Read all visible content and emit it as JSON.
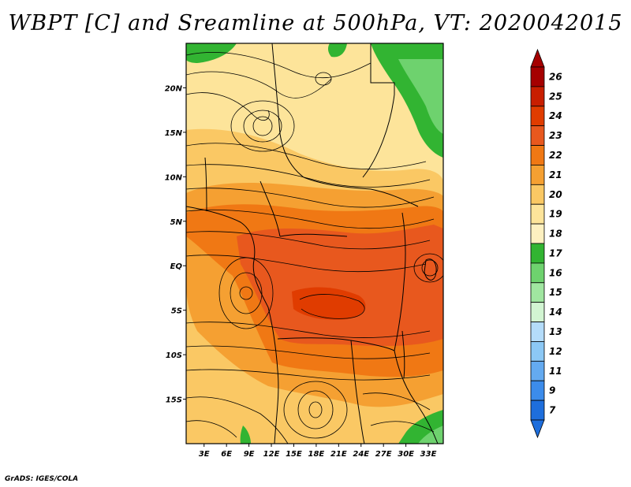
{
  "title": "WBPT [C] and Sreamline at 500hPa, VT: 2020042015",
  "credit": "GrADS: IGES/COLA",
  "map": {
    "lat_labels": [
      "20N",
      "15N",
      "10N",
      "5N",
      "EQ",
      "5S",
      "10S",
      "15S"
    ],
    "lat_values": [
      20,
      15,
      10,
      5,
      0,
      -5,
      -10,
      -15
    ],
    "lon_labels": [
      "3E",
      "6E",
      "9E",
      "12E",
      "15E",
      "18E",
      "21E",
      "24E",
      "27E",
      "30E",
      "33E"
    ],
    "lon_values": [
      3,
      6,
      9,
      12,
      15,
      18,
      21,
      24,
      27,
      30,
      33
    ],
    "lat_range": [
      -20,
      25
    ],
    "lon_range": [
      0.6,
      35
    ]
  },
  "colorbar": {
    "labels": [
      "26",
      "25",
      "24",
      "23",
      "22",
      "21",
      "20",
      "19",
      "18",
      "17",
      "16",
      "15",
      "14",
      "13",
      "12",
      "11",
      "9",
      "7"
    ],
    "colors": [
      "#a50000",
      "#c81e00",
      "#e03c00",
      "#e8581e",
      "#f07814",
      "#f5a032",
      "#fac864",
      "#fde49a",
      "#fdf0c0",
      "#32b432",
      "#6ed26e",
      "#a0e6a0",
      "#d2f5d2",
      "#b4dcfa",
      "#8cc8f5",
      "#64aaf0",
      "#3c8ceb",
      "#1e6edc"
    ]
  }
}
